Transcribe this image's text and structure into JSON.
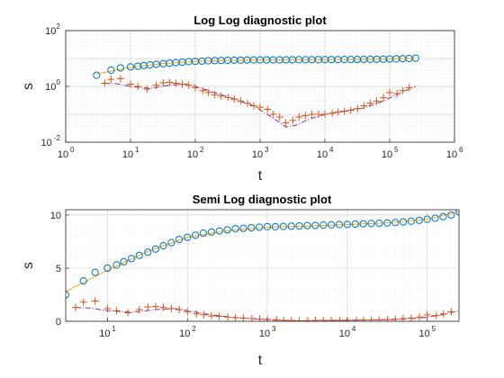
{
  "chart_data": [
    {
      "type": "scatter",
      "title": "Log Log diagnostic plot",
      "xlabel": "t",
      "ylabel": "s",
      "xscale": "log",
      "yscale": "log",
      "xlim": [
        1,
        1000000
      ],
      "ylim": [
        0.01,
        100
      ],
      "xticks": [
        {
          "base": "10",
          "exp": "0"
        },
        {
          "base": "10",
          "exp": "1"
        },
        {
          "base": "10",
          "exp": "2"
        },
        {
          "base": "10",
          "exp": "3"
        },
        {
          "base": "10",
          "exp": "4"
        },
        {
          "base": "10",
          "exp": "5"
        },
        {
          "base": "10",
          "exp": "6"
        }
      ],
      "yticks": [
        {
          "base": "10",
          "exp": "-2"
        },
        {
          "base": "10",
          "exp": "0"
        },
        {
          "base": "10",
          "exp": "2"
        }
      ],
      "grid": true,
      "colors": {
        "drawdown": "#0072BD",
        "model": "#EDB120",
        "derivative": "#D95319",
        "model_derivative": "#7E2F8E"
      },
      "series": [
        {
          "id": "drawdown",
          "marker": "circle",
          "x": [
            3,
            5,
            7,
            10,
            13,
            16,
            20,
            25,
            32,
            40,
            50,
            63,
            79,
            100,
            126,
            158,
            200,
            251,
            316,
            398,
            501,
            631,
            794,
            1000,
            1259,
            1585,
            1995,
            2512,
            3162,
            3981,
            5012,
            6310,
            7943,
            10000,
            12589,
            15849,
            19953,
            25119,
            31623,
            39811,
            50119,
            63096,
            79433,
            100000,
            125893,
            158489,
            199526,
            251189
          ],
          "y": [
            2.5,
            3.8,
            4.6,
            5.0,
            5.3,
            5.6,
            5.9,
            6.2,
            6.5,
            6.8,
            7.1,
            7.4,
            7.7,
            7.9,
            8.1,
            8.3,
            8.4,
            8.5,
            8.6,
            8.7,
            8.75,
            8.8,
            8.85,
            8.9,
            8.9,
            8.92,
            8.95,
            8.97,
            9.0,
            9.02,
            9.05,
            9.07,
            9.1,
            9.12,
            9.15,
            9.17,
            9.2,
            9.22,
            9.25,
            9.3,
            9.35,
            9.42,
            9.5,
            9.6,
            9.7,
            9.85,
            10.0,
            10.3
          ]
        },
        {
          "id": "model",
          "style": "line",
          "x": [
            3,
            10,
            30,
            100,
            300,
            1000,
            3000,
            10000,
            30000,
            100000,
            250000
          ],
          "y": [
            2.8,
            4.8,
            6.5,
            7.9,
            8.5,
            8.85,
            8.95,
            9.1,
            9.25,
            9.6,
            10.3
          ]
        },
        {
          "id": "derivative",
          "marker": "plus",
          "x": [
            4,
            5,
            7,
            10,
            13,
            18,
            25,
            32,
            40,
            50,
            63,
            79,
            100,
            130,
            160,
            200,
            250,
            320,
            400,
            500,
            640,
            800,
            1000,
            1300,
            1600,
            2000,
            2500,
            3200,
            4000,
            5000,
            6300,
            8000,
            10000,
            13000,
            16000,
            20000,
            25000,
            32000,
            40000,
            50000,
            63000,
            80000,
            100000,
            130000,
            160000,
            200000
          ],
          "y": [
            1.3,
            1.8,
            1.9,
            1.2,
            1.0,
            0.8,
            1.1,
            1.35,
            1.4,
            1.3,
            1.2,
            1.1,
            0.9,
            0.7,
            0.6,
            0.5,
            0.45,
            0.4,
            0.35,
            0.3,
            0.25,
            0.2,
            0.18,
            0.15,
            0.1,
            0.08,
            0.05,
            0.06,
            0.08,
            0.09,
            0.1,
            0.1,
            0.1,
            0.11,
            0.12,
            0.13,
            0.14,
            0.16,
            0.2,
            0.25,
            0.3,
            0.4,
            0.6,
            0.55,
            0.7,
            0.9
          ]
        },
        {
          "id": "model_derivative",
          "style": "dashdot",
          "x": [
            4,
            6,
            10,
            20,
            40,
            70,
            100,
            200,
            400,
            800,
            1500,
            2500,
            3500,
            6000,
            10000,
            20000,
            40000,
            80000,
            150000,
            250000
          ],
          "y": [
            1.3,
            1.25,
            1.0,
            0.85,
            1.1,
            1.2,
            1.0,
            0.6,
            0.35,
            0.2,
            0.08,
            0.035,
            0.04,
            0.07,
            0.1,
            0.13,
            0.17,
            0.3,
            0.6,
            1.0
          ]
        }
      ]
    },
    {
      "type": "scatter",
      "title": "Semi Log diagnostic plot",
      "xlabel": "t",
      "ylabel": "s",
      "xscale": "log",
      "yscale": "linear",
      "xlim": [
        3,
        250000
      ],
      "ylim": [
        0,
        10.5
      ],
      "xticks": [
        {
          "base": "10",
          "exp": "1"
        },
        {
          "base": "10",
          "exp": "2"
        },
        {
          "base": "10",
          "exp": "3"
        },
        {
          "base": "10",
          "exp": "4"
        },
        {
          "base": "10",
          "exp": "5"
        }
      ],
      "yticks": [
        "0",
        "5",
        "10"
      ],
      "grid": true,
      "colors": {
        "drawdown": "#0072BD",
        "model": "#EDB120",
        "derivative": "#D95319",
        "model_derivative": "#7E2F8E"
      },
      "series": [
        {
          "id": "drawdown",
          "marker": "circle",
          "x": [
            3,
            5,
            7,
            10,
            13,
            16,
            20,
            25,
            32,
            40,
            50,
            63,
            79,
            100,
            126,
            158,
            200,
            251,
            316,
            398,
            501,
            631,
            794,
            1000,
            1259,
            1585,
            1995,
            2512,
            3162,
            3981,
            5012,
            6310,
            7943,
            10000,
            12589,
            15849,
            19953,
            25119,
            31623,
            39811,
            50119,
            63096,
            79433,
            100000,
            125893,
            158489,
            199526,
            251189
          ],
          "y": [
            2.5,
            3.8,
            4.6,
            5.0,
            5.3,
            5.6,
            5.9,
            6.2,
            6.5,
            6.8,
            7.1,
            7.4,
            7.7,
            7.9,
            8.1,
            8.3,
            8.4,
            8.5,
            8.6,
            8.7,
            8.75,
            8.8,
            8.85,
            8.9,
            8.9,
            8.92,
            8.95,
            8.97,
            9.0,
            9.02,
            9.05,
            9.07,
            9.1,
            9.12,
            9.15,
            9.17,
            9.2,
            9.22,
            9.25,
            9.3,
            9.35,
            9.42,
            9.5,
            9.6,
            9.7,
            9.85,
            10.0,
            10.3
          ]
        },
        {
          "id": "model",
          "style": "line",
          "x": [
            3,
            10,
            30,
            100,
            300,
            1000,
            3000,
            10000,
            30000,
            100000,
            250000
          ],
          "y": [
            2.8,
            4.8,
            6.5,
            7.9,
            8.5,
            8.85,
            8.95,
            9.1,
            9.25,
            9.6,
            10.3
          ]
        },
        {
          "id": "derivative",
          "marker": "plus",
          "x": [
            4,
            5,
            7,
            10,
            13,
            18,
            25,
            32,
            40,
            50,
            63,
            79,
            100,
            130,
            160,
            200,
            250,
            320,
            400,
            500,
            640,
            800,
            1000,
            1300,
            1600,
            2000,
            2500,
            3200,
            4000,
            5000,
            6300,
            8000,
            10000,
            13000,
            16000,
            20000,
            25000,
            32000,
            40000,
            50000,
            63000,
            80000,
            100000,
            130000,
            160000,
            200000
          ],
          "y": [
            1.3,
            1.8,
            1.9,
            1.2,
            1.0,
            0.8,
            1.1,
            1.35,
            1.4,
            1.3,
            1.2,
            1.1,
            0.9,
            0.7,
            0.6,
            0.5,
            0.45,
            0.4,
            0.35,
            0.3,
            0.25,
            0.2,
            0.18,
            0.15,
            0.1,
            0.08,
            0.05,
            0.06,
            0.08,
            0.09,
            0.1,
            0.1,
            0.1,
            0.11,
            0.12,
            0.13,
            0.14,
            0.16,
            0.2,
            0.25,
            0.3,
            0.4,
            0.6,
            0.55,
            0.7,
            0.9
          ]
        },
        {
          "id": "model_derivative",
          "style": "dashdot",
          "x": [
            4,
            6,
            10,
            20,
            40,
            70,
            100,
            200,
            400,
            800,
            1500,
            2500,
            3500,
            6000,
            10000,
            20000,
            40000,
            80000,
            150000,
            250000
          ],
          "y": [
            1.3,
            1.25,
            1.0,
            0.85,
            1.1,
            1.2,
            1.0,
            0.6,
            0.35,
            0.2,
            0.08,
            0.035,
            0.04,
            0.07,
            0.1,
            0.13,
            0.17,
            0.3,
            0.6,
            1.0
          ]
        }
      ]
    }
  ]
}
